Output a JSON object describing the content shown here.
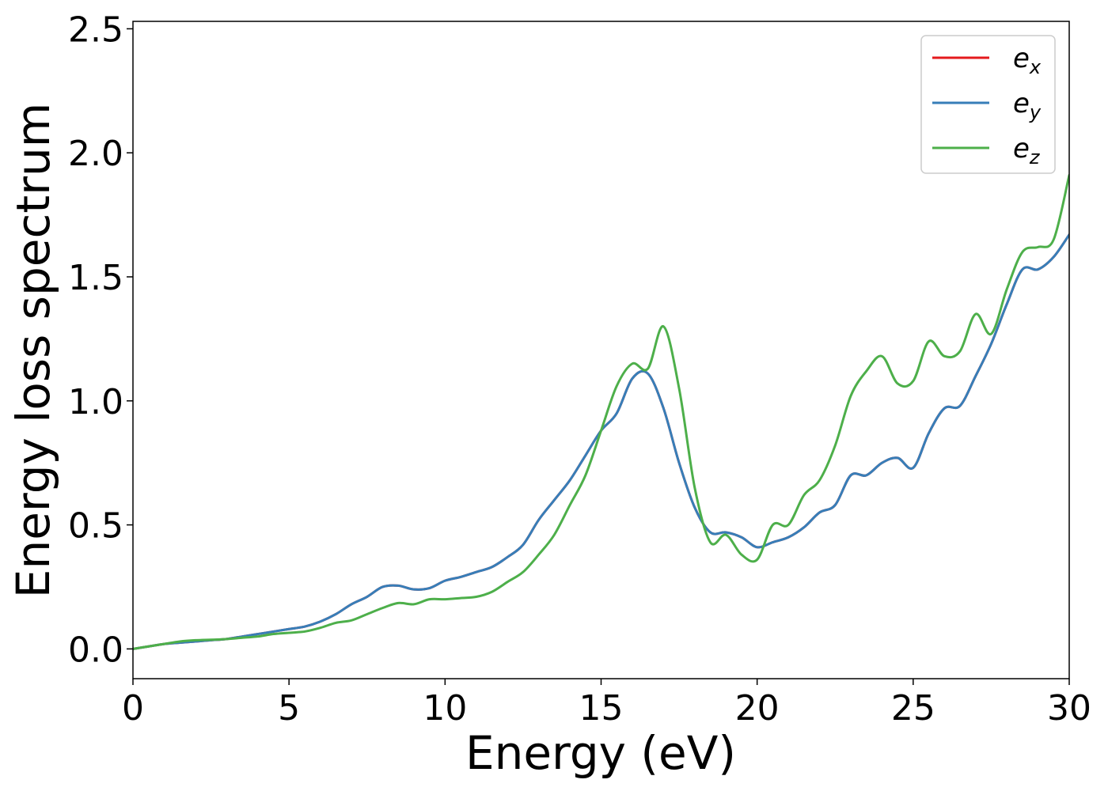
{
  "chart_data": {
    "type": "line",
    "title": "",
    "xlabel": "Energy (eV)",
    "ylabel": "Energy loss spectrum",
    "xlim": [
      0,
      30
    ],
    "ylim": [
      -0.12,
      2.53
    ],
    "x_ticks": [
      0,
      5,
      10,
      15,
      20,
      25,
      30
    ],
    "x_tick_labels": [
      "0",
      "5",
      "10",
      "15",
      "20",
      "25",
      "30"
    ],
    "y_ticks": [
      0.0,
      0.5,
      1.0,
      1.5,
      2.0,
      2.5
    ],
    "y_tick_labels": [
      "0.0",
      "0.5",
      "1.0",
      "1.5",
      "2.0",
      "2.5"
    ],
    "grid": false,
    "legend_position": "top-right",
    "series": [
      {
        "name": "e_x",
        "label_base": "e",
        "label_sub": "x",
        "color": "#e41a1c",
        "x": [
          0,
          0.5,
          1,
          1.5,
          2,
          2.5,
          3,
          3.5,
          4,
          4.5,
          5,
          5.5,
          6,
          6.5,
          7,
          7.5,
          8,
          8.5,
          9,
          9.5,
          10,
          10.5,
          11,
          11.5,
          12,
          12.5,
          13,
          13.5,
          14,
          14.5,
          15,
          15.5,
          16,
          16.5,
          17,
          17.5,
          18,
          18.5,
          19,
          19.5,
          20,
          20.5,
          21,
          21.5,
          22,
          22.5,
          23,
          23.5,
          24,
          24.5,
          25,
          25.5,
          26,
          26.5,
          27,
          27.5,
          28,
          28.5,
          29,
          29.5,
          30
        ],
        "y": [
          0.0,
          0.01,
          0.02,
          0.025,
          0.03,
          0.035,
          0.04,
          0.05,
          0.06,
          0.07,
          0.08,
          0.09,
          0.11,
          0.14,
          0.18,
          0.21,
          0.25,
          0.255,
          0.24,
          0.245,
          0.275,
          0.29,
          0.31,
          0.33,
          0.37,
          0.42,
          0.52,
          0.6,
          0.68,
          0.78,
          0.88,
          0.95,
          1.09,
          1.11,
          0.97,
          0.75,
          0.57,
          0.47,
          0.47,
          0.45,
          0.41,
          0.43,
          0.45,
          0.49,
          0.55,
          0.58,
          0.7,
          0.7,
          0.75,
          0.77,
          0.73,
          0.87,
          0.97,
          0.98,
          1.1,
          1.23,
          1.39,
          1.53,
          1.53,
          1.58,
          1.67
        ]
      },
      {
        "name": "e_y",
        "label_base": "e",
        "label_sub": "y",
        "color": "#377eb8",
        "x": [
          0,
          0.5,
          1,
          1.5,
          2,
          2.5,
          3,
          3.5,
          4,
          4.5,
          5,
          5.5,
          6,
          6.5,
          7,
          7.5,
          8,
          8.5,
          9,
          9.5,
          10,
          10.5,
          11,
          11.5,
          12,
          12.5,
          13,
          13.5,
          14,
          14.5,
          15,
          15.5,
          16,
          16.5,
          17,
          17.5,
          18,
          18.5,
          19,
          19.5,
          20,
          20.5,
          21,
          21.5,
          22,
          22.5,
          23,
          23.5,
          24,
          24.5,
          25,
          25.5,
          26,
          26.5,
          27,
          27.5,
          28,
          28.5,
          29,
          29.5,
          30
        ],
        "y": [
          0.0,
          0.01,
          0.02,
          0.025,
          0.03,
          0.035,
          0.04,
          0.05,
          0.06,
          0.07,
          0.08,
          0.09,
          0.11,
          0.14,
          0.18,
          0.21,
          0.25,
          0.255,
          0.24,
          0.245,
          0.275,
          0.29,
          0.31,
          0.33,
          0.37,
          0.42,
          0.52,
          0.6,
          0.68,
          0.78,
          0.88,
          0.95,
          1.09,
          1.11,
          0.97,
          0.75,
          0.57,
          0.47,
          0.47,
          0.45,
          0.41,
          0.43,
          0.45,
          0.49,
          0.55,
          0.58,
          0.7,
          0.7,
          0.75,
          0.77,
          0.73,
          0.87,
          0.97,
          0.98,
          1.1,
          1.23,
          1.39,
          1.53,
          1.53,
          1.58,
          1.67
        ]
      },
      {
        "name": "e_z",
        "label_base": "e",
        "label_sub": "z",
        "color": "#4daf4a",
        "x": [
          0,
          0.5,
          1,
          1.5,
          2,
          2.5,
          3,
          3.5,
          4,
          4.5,
          5,
          5.5,
          6,
          6.5,
          7,
          7.5,
          8,
          8.5,
          9,
          9.5,
          10,
          10.5,
          11,
          11.5,
          12,
          12.5,
          13,
          13.5,
          14,
          14.5,
          15,
          15.5,
          16,
          16.5,
          17,
          17.5,
          18,
          18.5,
          19,
          19.5,
          20,
          20.5,
          21,
          21.5,
          22,
          22.5,
          23,
          23.5,
          24,
          24.5,
          25,
          25.5,
          26,
          26.5,
          27,
          27.5,
          28,
          28.5,
          29,
          29.5,
          30
        ],
        "y": [
          0.0,
          0.01,
          0.02,
          0.03,
          0.035,
          0.037,
          0.04,
          0.045,
          0.05,
          0.06,
          0.065,
          0.07,
          0.085,
          0.105,
          0.115,
          0.14,
          0.165,
          0.185,
          0.18,
          0.2,
          0.2,
          0.205,
          0.21,
          0.23,
          0.27,
          0.31,
          0.38,
          0.46,
          0.58,
          0.7,
          0.88,
          1.06,
          1.15,
          1.13,
          1.3,
          1.05,
          0.65,
          0.43,
          0.46,
          0.38,
          0.36,
          0.5,
          0.5,
          0.62,
          0.68,
          0.82,
          1.02,
          1.12,
          1.18,
          1.07,
          1.08,
          1.24,
          1.18,
          1.2,
          1.35,
          1.27,
          1.45,
          1.6,
          1.62,
          1.65,
          1.91
        ]
      }
    ]
  }
}
